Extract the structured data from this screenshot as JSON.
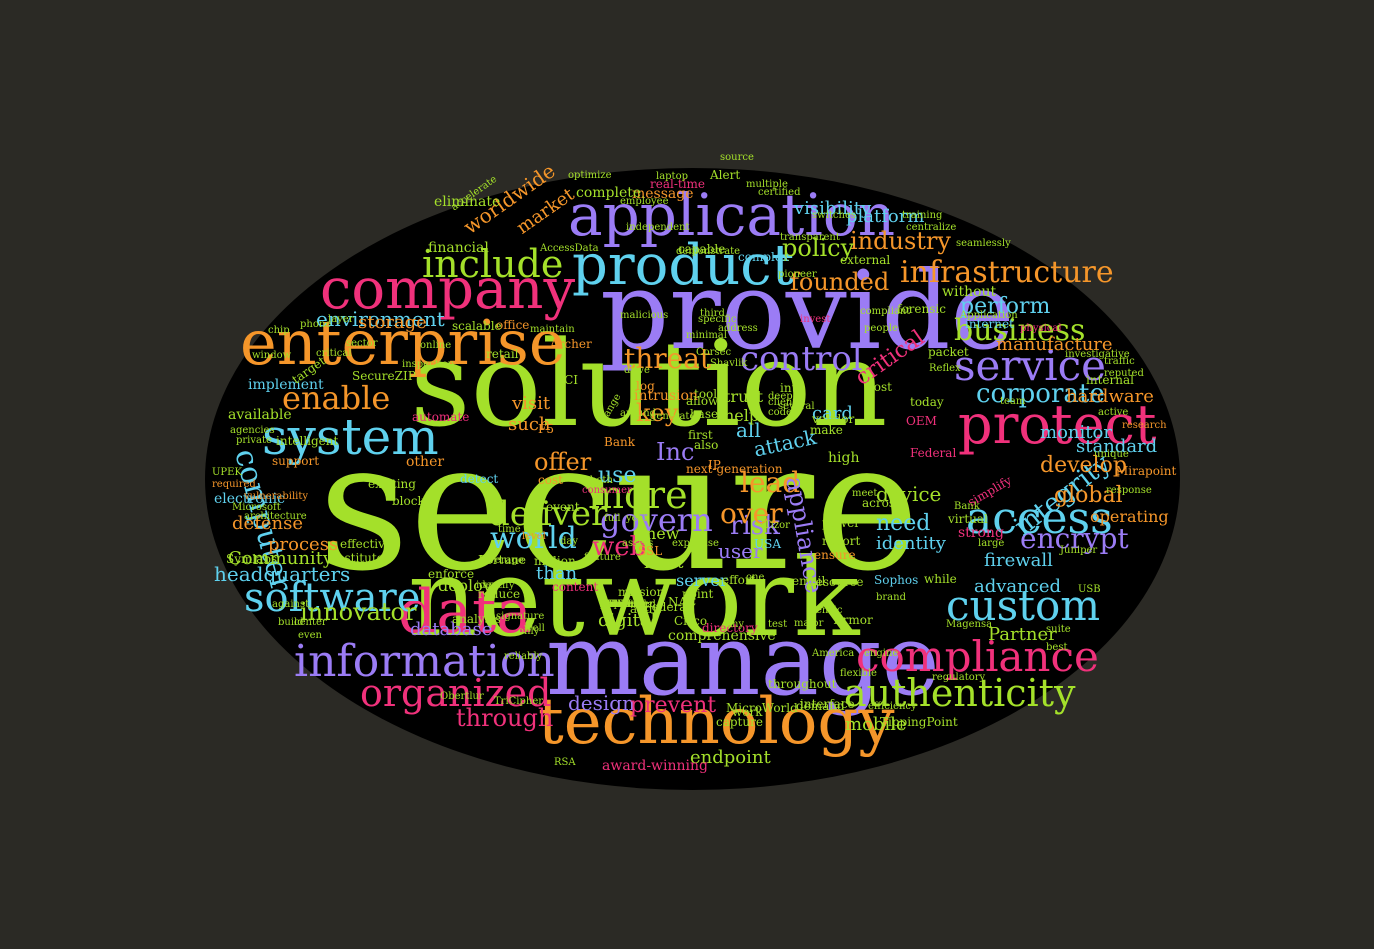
{
  "palette": {
    "green": "#a4e02a",
    "purple": "#9b7cf5",
    "orange": "#f5962a",
    "pink": "#f0317b",
    "cyan": "#5fd1ee",
    "background": "#2b2a25",
    "cloud_shape": "#000000"
  },
  "words": [
    {
      "text": "secure",
      "color": "green"
    },
    {
      "text": "solution",
      "color": "green"
    },
    {
      "text": "network",
      "color": "green"
    },
    {
      "text": "provide",
      "color": "purple"
    },
    {
      "text": "manage",
      "color": "purple"
    },
    {
      "text": "application",
      "color": "purple"
    },
    {
      "text": "product",
      "color": "cyan"
    },
    {
      "text": "enterprise",
      "color": "orange"
    },
    {
      "text": "company",
      "color": "pink"
    },
    {
      "text": "technology",
      "color": "orange"
    },
    {
      "text": "system",
      "color": "cyan"
    },
    {
      "text": "data",
      "color": "pink"
    },
    {
      "text": "protect",
      "color": "pink"
    },
    {
      "text": "information",
      "color": "purple"
    },
    {
      "text": "access",
      "color": "cyan"
    },
    {
      "text": "compliance",
      "color": "pink"
    },
    {
      "text": "service",
      "color": "purple"
    },
    {
      "text": "software",
      "color": "cyan"
    },
    {
      "text": "custom",
      "color": "cyan"
    },
    {
      "text": "include",
      "color": "green"
    },
    {
      "text": "organized",
      "color": "pink"
    },
    {
      "text": "authenticity",
      "color": "green"
    },
    {
      "text": "infrastructure",
      "color": "orange"
    },
    {
      "text": "enable",
      "color": "orange"
    },
    {
      "text": "control",
      "color": "purple"
    },
    {
      "text": "business",
      "color": "green"
    },
    {
      "text": "more",
      "color": "green"
    },
    {
      "text": "deliver",
      "color": "green"
    },
    {
      "text": "computer",
      "color": "cyan"
    },
    {
      "text": "world",
      "color": "cyan"
    },
    {
      "text": "govern",
      "color": "purple"
    },
    {
      "text": "threat",
      "color": "orange"
    },
    {
      "text": "corporate",
      "color": "cyan"
    },
    {
      "text": "encrypt",
      "color": "purple"
    },
    {
      "text": "innovator",
      "color": "green"
    },
    {
      "text": "integrity",
      "color": "cyan"
    },
    {
      "text": "industry",
      "color": "orange"
    },
    {
      "text": "policy",
      "color": "green"
    },
    {
      "text": "founded",
      "color": "orange"
    },
    {
      "text": "critical",
      "color": "pink"
    },
    {
      "text": "perform",
      "color": "cyan"
    },
    {
      "text": "develop",
      "color": "orange"
    },
    {
      "text": "global",
      "color": "orange"
    },
    {
      "text": "risk",
      "color": "purple"
    },
    {
      "text": "lead",
      "color": "orange"
    },
    {
      "text": "over",
      "color": "orange"
    },
    {
      "text": "web",
      "color": "pink"
    },
    {
      "text": "offer",
      "color": "orange"
    },
    {
      "text": "through",
      "color": "pink"
    },
    {
      "text": "design",
      "color": "purple"
    },
    {
      "text": "prevent",
      "color": "pink"
    },
    {
      "text": "endpoint",
      "color": "green"
    },
    {
      "text": "mobile",
      "color": "green"
    },
    {
      "text": "device",
      "color": "green"
    },
    {
      "text": "identity",
      "color": "cyan"
    },
    {
      "text": "need",
      "color": "cyan"
    },
    {
      "text": "appliance",
      "color": "purple"
    },
    {
      "text": "attack",
      "color": "cyan"
    },
    {
      "text": "user",
      "color": "purple"
    },
    {
      "text": "key",
      "color": "orange"
    },
    {
      "text": "Inc",
      "color": "purple"
    },
    {
      "text": "use",
      "color": "cyan"
    },
    {
      "text": "card",
      "color": "cyan"
    },
    {
      "text": "environment",
      "color": "cyan"
    },
    {
      "text": "worldwide",
      "color": "orange"
    },
    {
      "text": "market",
      "color": "orange"
    },
    {
      "text": "headquarters",
      "color": "cyan"
    },
    {
      "text": "database",
      "color": "purple"
    },
    {
      "text": "digital",
      "color": "green"
    },
    {
      "text": "visibility",
      "color": "cyan"
    },
    {
      "text": "platform",
      "color": "cyan"
    },
    {
      "text": "storage",
      "color": "orange"
    },
    {
      "text": "manufacture",
      "color": "orange"
    },
    {
      "text": "hardware",
      "color": "orange"
    },
    {
      "text": "standard",
      "color": "cyan"
    },
    {
      "text": "monitor",
      "color": "cyan"
    },
    {
      "text": "operating",
      "color": "orange"
    },
    {
      "text": "firewall",
      "color": "cyan"
    },
    {
      "text": "advanced",
      "color": "cyan"
    },
    {
      "text": "Partner",
      "color": "green"
    },
    {
      "text": "process",
      "color": "orange"
    },
    {
      "text": "defense",
      "color": "orange"
    },
    {
      "text": "Community",
      "color": "green"
    },
    {
      "text": "server",
      "color": "cyan"
    },
    {
      "text": "such",
      "color": "orange"
    },
    {
      "text": "visit",
      "color": "orange"
    },
    {
      "text": "all",
      "color": "cyan"
    },
    {
      "text": "help",
      "color": "green"
    },
    {
      "text": "trust",
      "color": "green"
    },
    {
      "text": "message",
      "color": "orange"
    },
    {
      "text": "complete",
      "color": "green"
    },
    {
      "text": "capable",
      "color": "green"
    },
    {
      "text": "complex",
      "color": "cyan"
    },
    {
      "text": "eliminate",
      "color": "green"
    },
    {
      "text": "financial",
      "color": "green"
    },
    {
      "text": "high",
      "color": "green"
    },
    {
      "text": "than",
      "color": "cyan"
    },
    {
      "text": "new",
      "color": "green"
    },
    {
      "text": "most",
      "color": "green"
    },
    {
      "text": "deploy",
      "color": "green"
    },
    {
      "text": "without",
      "color": "green"
    },
    {
      "text": "available",
      "color": "green"
    },
    {
      "text": "implement",
      "color": "cyan"
    },
    {
      "text": "electronic",
      "color": "cyan"
    },
    {
      "text": "support",
      "color": "orange"
    },
    {
      "text": "Symlabs",
      "color": "green"
    },
    {
      "text": "Institute",
      "color": "green"
    },
    {
      "text": "effective",
      "color": "green"
    },
    {
      "text": "intelligent",
      "color": "green"
    },
    {
      "text": "existing",
      "color": "green"
    },
    {
      "text": "block",
      "color": "green"
    },
    {
      "text": "other",
      "color": "orange"
    },
    {
      "text": "detect",
      "color": "cyan"
    },
    {
      "text": "enforce",
      "color": "green"
    },
    {
      "text": "Fortune",
      "color": "green"
    },
    {
      "text": "million",
      "color": "green"
    },
    {
      "text": "audit",
      "color": "green"
    },
    {
      "text": "point",
      "color": "green"
    },
    {
      "text": "email",
      "color": "green"
    },
    {
      "text": "resource",
      "color": "green"
    },
    {
      "text": "Sophos",
      "color": "cyan"
    },
    {
      "text": "while",
      "color": "green"
    },
    {
      "text": "strong",
      "color": "pink"
    },
    {
      "text": "virtual",
      "color": "green"
    },
    {
      "text": "across",
      "color": "green"
    },
    {
      "text": "power",
      "color": "green"
    },
    {
      "text": "ensure",
      "color": "orange"
    },
    {
      "text": "report",
      "color": "green"
    },
    {
      "text": "SSL",
      "color": "orange"
    },
    {
      "text": "also",
      "color": "green"
    },
    {
      "text": "first",
      "color": "green"
    },
    {
      "text": "tools",
      "color": "green"
    },
    {
      "text": "make",
      "color": "green"
    },
    {
      "text": "IP",
      "color": "orange"
    },
    {
      "text": "vendor",
      "color": "green"
    },
    {
      "text": "host",
      "color": "green"
    },
    {
      "text": "today",
      "color": "green"
    },
    {
      "text": "OEM",
      "color": "pink"
    },
    {
      "text": "research",
      "color": "orange"
    },
    {
      "text": "internal",
      "color": "green"
    },
    {
      "text": "packet",
      "color": "green"
    },
    {
      "text": "Reflex",
      "color": "green"
    },
    {
      "text": "internet",
      "color": "cyan"
    },
    {
      "text": "forensic",
      "color": "green"
    },
    {
      "text": "external",
      "color": "green"
    },
    {
      "text": "training",
      "color": "green"
    },
    {
      "text": "investigative",
      "color": "green"
    },
    {
      "text": "office",
      "color": "orange"
    },
    {
      "text": "scalable",
      "color": "green"
    },
    {
      "text": "maintain",
      "color": "green"
    },
    {
      "text": "retail",
      "color": "green"
    },
    {
      "text": "Archer",
      "color": "orange"
    },
    {
      "text": "PCI",
      "color": "green"
    },
    {
      "text": "target",
      "color": "green"
    },
    {
      "text": "automate",
      "color": "pink"
    },
    {
      "text": "intrusion",
      "color": "orange"
    },
    {
      "text": "log",
      "color": "orange"
    },
    {
      "text": "allow",
      "color": "green"
    },
    {
      "text": "base",
      "color": "green"
    },
    {
      "text": "into",
      "color": "green"
    },
    {
      "text": "Alert",
      "color": "green"
    },
    {
      "text": "real-time",
      "color": "pink"
    },
    {
      "text": "AccessData",
      "color": "green"
    },
    {
      "text": "optimize",
      "color": "green"
    },
    {
      "text": "next-generation",
      "color": "orange"
    },
    {
      "text": "Bank",
      "color": "orange"
    },
    {
      "text": "cost",
      "color": "orange"
    },
    {
      "text": "time",
      "color": "green"
    },
    {
      "text": "reduce",
      "color": "green"
    },
    {
      "text": "content",
      "color": "pink"
    },
    {
      "text": "effort",
      "color": "green"
    },
    {
      "text": "USA",
      "color": "cyan"
    },
    {
      "text": "NAC",
      "color": "green"
    },
    {
      "text": "Cisco",
      "color": "green"
    },
    {
      "text": "brand",
      "color": "green"
    },
    {
      "text": "Magensa",
      "color": "green"
    },
    {
      "text": "simplify",
      "color": "pink"
    },
    {
      "text": "interface",
      "color": "green"
    },
    {
      "text": "TippingPoint",
      "color": "green"
    },
    {
      "text": "award-winning",
      "color": "pink"
    },
    {
      "text": "comprehensive",
      "color": "green"
    },
    {
      "text": "directory",
      "color": "pink"
    },
    {
      "text": "Armor",
      "color": "green"
    },
    {
      "text": "Federal",
      "color": "pink"
    },
    {
      "text": "Mirapoint",
      "color": "orange"
    },
    {
      "text": "unique",
      "color": "green"
    },
    {
      "text": "response",
      "color": "green"
    },
    {
      "text": "throughout",
      "color": "green"
    },
    {
      "text": "work",
      "color": "green"
    },
    {
      "text": "capture",
      "color": "green"
    },
    {
      "text": "MicroWorld",
      "color": "green"
    },
    {
      "text": "demand",
      "color": "green"
    },
    {
      "text": "flexible",
      "color": "green"
    },
    {
      "text": "SecureZIP",
      "color": "green"
    },
    {
      "text": "agencies",
      "color": "green"
    },
    {
      "text": "UPEK",
      "color": "green"
    },
    {
      "text": "required",
      "color": "orange"
    },
    {
      "text": "architecture",
      "color": "green"
    },
    {
      "text": "vulnerability",
      "color": "orange"
    },
    {
      "text": "Microsoft",
      "color": "green"
    },
    {
      "text": "analysis",
      "color": "green"
    },
    {
      "text": "leverage",
      "color": "green"
    },
    {
      "text": "identify",
      "color": "green"
    },
    {
      "text": "consumer",
      "color": "pink"
    },
    {
      "text": "both",
      "color": "green"
    },
    {
      "text": "online",
      "color": "green"
    },
    {
      "text": "event",
      "color": "green"
    },
    {
      "text": "level",
      "color": "orange"
    },
    {
      "text": "F5",
      "color": "orange"
    },
    {
      "text": "mission",
      "color": "green"
    },
    {
      "text": "Federal",
      "color": "green"
    },
    {
      "text": "Genzic",
      "color": "green"
    },
    {
      "text": "major",
      "color": "green"
    },
    {
      "text": "meet",
      "color": "green"
    },
    {
      "text": "Bank",
      "color": "green"
    },
    {
      "text": "large",
      "color": "green"
    },
    {
      "text": "USB",
      "color": "green"
    },
    {
      "text": "suite",
      "color": "green"
    },
    {
      "text": "center",
      "color": "green"
    },
    {
      "text": "against",
      "color": "green"
    },
    {
      "text": "critical",
      "color": "green"
    },
    {
      "text": "layer",
      "color": "green"
    },
    {
      "text": "sector",
      "color": "green"
    },
    {
      "text": "window",
      "color": "green"
    },
    {
      "text": "chip",
      "color": "green"
    },
    {
      "text": "phone",
      "color": "green"
    },
    {
      "text": "accelerate",
      "color": "green"
    },
    {
      "text": "inspection",
      "color": "green"
    },
    {
      "text": "laptop",
      "color": "green"
    },
    {
      "text": "source",
      "color": "green"
    },
    {
      "text": "certified",
      "color": "green"
    },
    {
      "text": "multiple",
      "color": "green"
    },
    {
      "text": "switches",
      "color": "green"
    },
    {
      "text": "centralize",
      "color": "green"
    },
    {
      "text": "seamlessly",
      "color": "green"
    },
    {
      "text": "Application",
      "color": "green"
    },
    {
      "text": "physical",
      "color": "pink"
    },
    {
      "text": "transparent",
      "color": "green"
    },
    {
      "text": "pioneer",
      "color": "green"
    },
    {
      "text": "compliant",
      "color": "green"
    },
    {
      "text": "people",
      "color": "green"
    },
    {
      "text": "specific",
      "color": "green"
    },
    {
      "text": "demonstrate",
      "color": "green"
    },
    {
      "text": "employee",
      "color": "green"
    },
    {
      "text": "independent",
      "color": "green"
    },
    {
      "text": "malicious",
      "color": "green"
    },
    {
      "text": "minimal",
      "color": "green"
    },
    {
      "text": "address",
      "color": "green"
    },
    {
      "text": "third",
      "color": "green"
    },
    {
      "text": "Shavlik",
      "color": "green"
    },
    {
      "text": "Corsec",
      "color": "green"
    },
    {
      "text": "drive",
      "color": "green"
    },
    {
      "text": "around",
      "color": "green"
    },
    {
      "text": "generates",
      "color": "green"
    },
    {
      "text": "range",
      "color": "green"
    },
    {
      "text": "deep",
      "color": "green"
    },
    {
      "text": "code",
      "color": "green"
    },
    {
      "text": "client",
      "color": "green"
    },
    {
      "text": "several",
      "color": "green"
    },
    {
      "text": "invest",
      "color": "pink"
    },
    {
      "text": "team",
      "color": "green"
    },
    {
      "text": "traffic",
      "color": "green"
    },
    {
      "text": "active",
      "color": "green"
    },
    {
      "text": "day",
      "color": "green"
    },
    {
      "text": "full",
      "color": "green"
    },
    {
      "text": "year",
      "color": "green"
    },
    {
      "text": "Tizor",
      "color": "green"
    },
    {
      "text": "one",
      "color": "green"
    },
    {
      "text": "any",
      "color": "green"
    },
    {
      "text": "test",
      "color": "green"
    },
    {
      "text": "America",
      "color": "green"
    },
    {
      "text": "engine",
      "color": "green"
    },
    {
      "text": "efficiency",
      "color": "green"
    },
    {
      "text": "regulatory",
      "color": "green"
    },
    {
      "text": "Juniper",
      "color": "green"
    },
    {
      "text": "best",
      "color": "green"
    },
    {
      "text": "well",
      "color": "green"
    },
    {
      "text": "only",
      "color": "green"
    },
    {
      "text": "build",
      "color": "green"
    },
    {
      "text": "even",
      "color": "green"
    },
    {
      "text": "reliably",
      "color": "green"
    },
    {
      "text": "Obertlur",
      "color": "green"
    },
    {
      "text": "TriCipher",
      "color": "green"
    },
    {
      "text": "RSA",
      "color": "green"
    },
    {
      "text": "private",
      "color": "green"
    },
    {
      "text": "feature",
      "color": "green"
    },
    {
      "text": "assets",
      "color": "green"
    },
    {
      "text": "expertise",
      "color": "green"
    },
    {
      "text": "signature",
      "color": "green"
    },
    {
      "text": "reputed",
      "color": "green"
    },
    {
      "text": "assured",
      "color": "green"
    },
    {
      "text": "challenger",
      "color": "green"
    },
    {
      "text": "validated",
      "color": "green"
    },
    {
      "text": "installed",
      "color": "green"
    },
    {
      "text": "distributed",
      "color": "green"
    },
    {
      "text": "focuses",
      "color": "green"
    },
    {
      "text": "utilize",
      "color": "green"
    },
    {
      "text": "problem",
      "color": "green"
    },
    {
      "text": "Capital",
      "color": "green"
    },
    {
      "text": "UK",
      "color": "green"
    },
    {
      "text": "FIPS",
      "color": "green"
    },
    {
      "text": "all",
      "color": "green"
    },
    {
      "text": "SafeNet",
      "color": "green"
    }
  ]
}
